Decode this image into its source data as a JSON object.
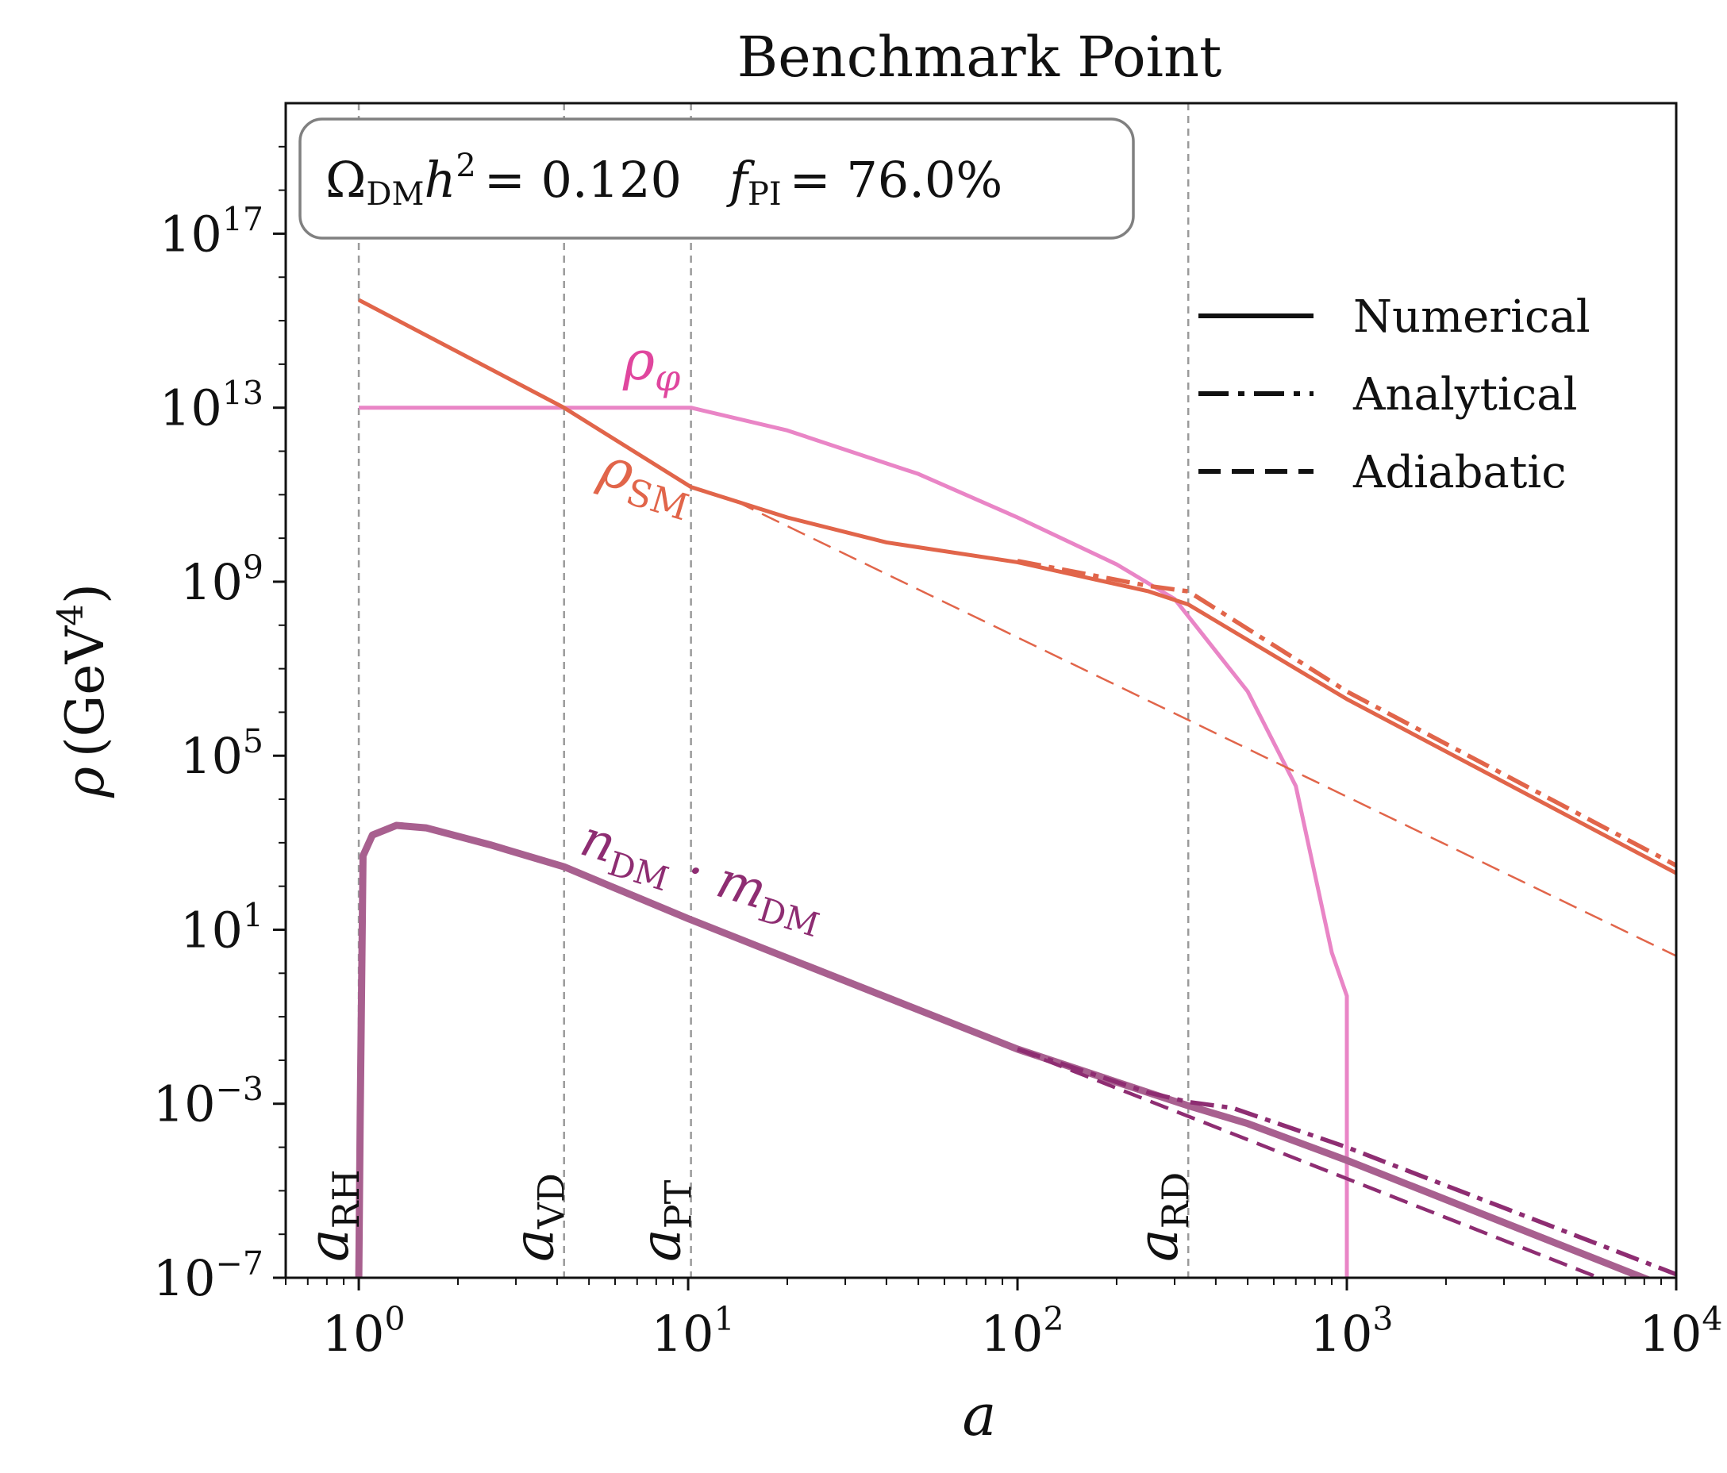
{
  "chart_data": {
    "type": "line",
    "title": "Benchmark Point",
    "xlabel": "a",
    "ylabel": {
      "main": "ρ",
      "unit_open": "(",
      "unit": "GeV",
      "unit_exp": "4",
      "unit_close": ")"
    },
    "xscale": "log",
    "yscale": "log",
    "xlim": [
      0.6,
      10000
    ],
    "ylim": [
      1e-07,
      1e+20
    ],
    "x_ticks": [
      {
        "base": "10",
        "exp": "0",
        "value": 1
      },
      {
        "base": "10",
        "exp": "1",
        "value": 10
      },
      {
        "base": "10",
        "exp": "2",
        "value": 100
      },
      {
        "base": "10",
        "exp": "3",
        "value": 1000
      },
      {
        "base": "10",
        "exp": "4",
        "value": 10000
      }
    ],
    "y_ticks": [
      {
        "base": "10",
        "exp": "−7",
        "value": 1e-07
      },
      {
        "base": "10",
        "exp": "−3",
        "value": 0.001
      },
      {
        "base": "10",
        "exp": "1",
        "value": 10
      },
      {
        "base": "10",
        "exp": "5",
        "value": 100000
      },
      {
        "base": "10",
        "exp": "9",
        "value": 1000000000
      },
      {
        "base": "10",
        "exp": "13",
        "value": 10000000000000
      },
      {
        "base": "10",
        "exp": "17",
        "value": 100000000000000000
      }
    ],
    "info_box": {
      "omega_symbol": "Ω",
      "omega_sub": "DM",
      "h": "h",
      "h_exp": "2",
      "omega_value": "= 0.120",
      "f_symbol": "f",
      "f_sub": "PI",
      "f_value": "= 76.0%"
    },
    "vlines": [
      {
        "x": 1,
        "base": "a",
        "sub": "RH"
      },
      {
        "x": 4.2,
        "base": "a",
        "sub": "VD"
      },
      {
        "x": 10.2,
        "base": "a",
        "sub": "PT"
      },
      {
        "x": 330,
        "base": "a",
        "sub": "RD"
      }
    ],
    "legend": {
      "position": "top-right",
      "entries": [
        {
          "label": "Numerical",
          "style": "solid"
        },
        {
          "label": "Analytical",
          "style": "dashdot"
        },
        {
          "label": "Adiabatic",
          "style": "dashed"
        }
      ]
    },
    "curve_labels": [
      {
        "series": "rho_phi",
        "base": "ρ",
        "sub": "φ"
      },
      {
        "series": "rho_SM",
        "base": "ρ",
        "sub": "SM"
      },
      {
        "series": "rho_DM",
        "text": "n",
        "sub1": "DM",
        "mid": " · m",
        "sub2": "DM"
      }
    ],
    "colors": {
      "rho_phi": "#e985c6",
      "rho_phi_label": "#e0469e",
      "rho_SM": "#e1654a",
      "rho_DM": "#8e2d72",
      "rho_DM_numerical": "#a8608f",
      "vline": "#9a9a9a",
      "box_edge": "#808080"
    },
    "series": [
      {
        "name": "rho_phi",
        "style": "solid",
        "x": [
          1,
          10.2,
          20,
          50,
          100,
          200,
          300,
          500,
          700,
          900,
          1000,
          1000
        ],
        "y": [
          10000000000000.0,
          10000000000000.0,
          3000000000000.0,
          300000000000.0,
          30000000000.0,
          2500000000.0,
          400000000.0,
          3000000.0,
          20000.0,
          3,
          0.3,
          1e-07
        ]
      },
      {
        "name": "rho_SM",
        "style": "solid",
        "x": [
          1,
          4.2,
          10.2,
          20,
          40,
          100,
          250,
          330,
          1000,
          10000
        ],
        "y": [
          3000000000000000.0,
          10000000000000.0,
          150000000000.0,
          30000000000.0,
          8000000000.0,
          2800000000.0,
          600000000.0,
          300000000.0,
          2000000.0,
          200.0
        ]
      },
      {
        "name": "rho_SM",
        "style": "dashdot",
        "x": [
          100,
          250,
          330,
          1000,
          10000
        ],
        "y": [
          3000000000.0,
          800000000.0,
          600000000.0,
          3000000.0,
          300.0
        ]
      },
      {
        "name": "rho_SM",
        "style": "dashed",
        "x": [
          14,
          10000
        ],
        "y": [
          70000000000.0,
          2.5
        ]
      },
      {
        "name": "rho_DM",
        "style": "solid",
        "x": [
          1,
          1.01,
          1.03,
          1.1,
          1.3,
          1.6,
          2.5,
          4.2,
          10,
          100,
          250,
          330,
          500,
          1000,
          10000
        ],
        "y": [
          1e-07,
          0.0005,
          500,
          1500,
          2500,
          2200,
          900,
          280,
          18,
          0.018,
          0.0018,
          0.0009,
          0.00035,
          5e-05,
          5e-08
        ]
      },
      {
        "name": "rho_DM",
        "style": "dashdot",
        "x": [
          100,
          250,
          330,
          450,
          1000,
          10000
        ],
        "y": [
          0.018,
          0.0018,
          0.0011,
          0.0008,
          0.0001,
          1.2e-07
        ]
      },
      {
        "name": "rho_DM",
        "style": "dashed",
        "x": [
          100,
          10000
        ],
        "y": [
          0.018,
          2e-08
        ]
      }
    ]
  }
}
